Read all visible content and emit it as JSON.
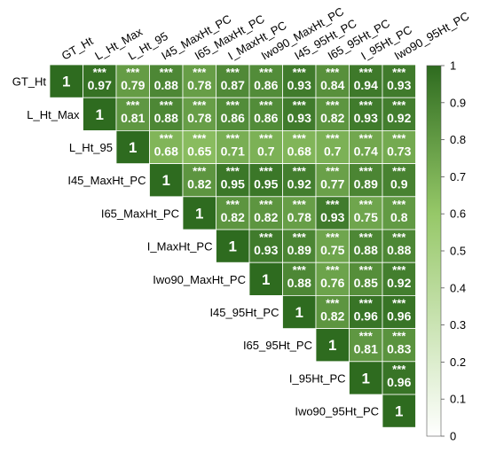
{
  "chart_data": {
    "type": "heatmap",
    "title": "",
    "variables": [
      "GT_Ht",
      "L_Ht_Max",
      "L_Ht_95",
      "I45_MaxHt_PC",
      "I65_MaxHt_PC",
      "I_MaxHt_PC",
      "Iwo90_MaxHt_PC",
      "I45_95Ht_PC",
      "I65_95Ht_PC",
      "I_95Ht_PC",
      "Iwo90_95Ht_PC"
    ],
    "values": [
      [
        1,
        0.97,
        0.79,
        0.88,
        0.78,
        0.87,
        0.86,
        0.93,
        0.84,
        0.94,
        0.93
      ],
      [
        null,
        1,
        0.81,
        0.88,
        0.78,
        0.86,
        0.86,
        0.93,
        0.82,
        0.93,
        0.92
      ],
      [
        null,
        null,
        1,
        0.68,
        0.65,
        0.71,
        0.7,
        0.68,
        0.7,
        0.74,
        0.73
      ],
      [
        null,
        null,
        null,
        1,
        0.82,
        0.95,
        0.95,
        0.92,
        0.77,
        0.89,
        0.9
      ],
      [
        null,
        null,
        null,
        null,
        1,
        0.82,
        0.82,
        0.78,
        0.93,
        0.75,
        0.8
      ],
      [
        null,
        null,
        null,
        null,
        null,
        1,
        0.93,
        0.89,
        0.75,
        0.88,
        0.88
      ],
      [
        null,
        null,
        null,
        null,
        null,
        null,
        1,
        0.88,
        0.76,
        0.85,
        0.92
      ],
      [
        null,
        null,
        null,
        null,
        null,
        null,
        null,
        1,
        0.82,
        0.96,
        0.96
      ],
      [
        null,
        null,
        null,
        null,
        null,
        null,
        null,
        null,
        1,
        0.81,
        0.83
      ],
      [
        null,
        null,
        null,
        null,
        null,
        null,
        null,
        null,
        null,
        1,
        0.96
      ],
      [
        null,
        null,
        null,
        null,
        null,
        null,
        null,
        null,
        null,
        null,
        1
      ]
    ],
    "value_labels": [
      [
        "1",
        "0.97",
        "0.79",
        "0.88",
        "0.78",
        "0.87",
        "0.86",
        "0.93",
        "0.84",
        "0.94",
        "0.93"
      ],
      [
        "",
        "1",
        "0.81",
        "0.88",
        "0.78",
        "0.86",
        "0.86",
        "0.93",
        "0.82",
        "0.93",
        "0.92"
      ],
      [
        "",
        "",
        "1",
        "0.68",
        "0.65",
        "0.71",
        "0.7",
        "0.68",
        "0.7",
        "0.74",
        "0.73"
      ],
      [
        "",
        "",
        "",
        "1",
        "0.82",
        "0.95",
        "0.95",
        "0.92",
        "0.77",
        "0.89",
        "0.9"
      ],
      [
        "",
        "",
        "",
        "",
        "1",
        "0.82",
        "0.82",
        "0.78",
        "0.93",
        "0.75",
        "0.8"
      ],
      [
        "",
        "",
        "",
        "",
        "",
        "1",
        "0.93",
        "0.89",
        "0.75",
        "0.88",
        "0.88"
      ],
      [
        "",
        "",
        "",
        "",
        "",
        "",
        "1",
        "0.88",
        "0.76",
        "0.85",
        "0.92"
      ],
      [
        "",
        "",
        "",
        "",
        "",
        "",
        "",
        "1",
        "0.82",
        "0.96",
        "0.96"
      ],
      [
        "",
        "",
        "",
        "",
        "",
        "",
        "",
        "",
        "1",
        "0.81",
        "0.83"
      ],
      [
        "",
        "",
        "",
        "",
        "",
        "",
        "",
        "",
        "",
        "1",
        "0.96"
      ],
      [
        "",
        "",
        "",
        "",
        "",
        "",
        "",
        "",
        "",
        "",
        "1"
      ]
    ],
    "significance_label": "***",
    "colorbar": {
      "min": 0,
      "max": 1,
      "ticks": [
        "0",
        "0.1",
        "0.2",
        "0.3",
        "0.4",
        "0.5",
        "0.6",
        "0.7",
        "0.8",
        "0.9",
        "1"
      ],
      "color_low": "#ffffff",
      "color_high": "#2e6b1f"
    },
    "layout": "upper-triangle",
    "legend_position": "right",
    "grid": true
  }
}
